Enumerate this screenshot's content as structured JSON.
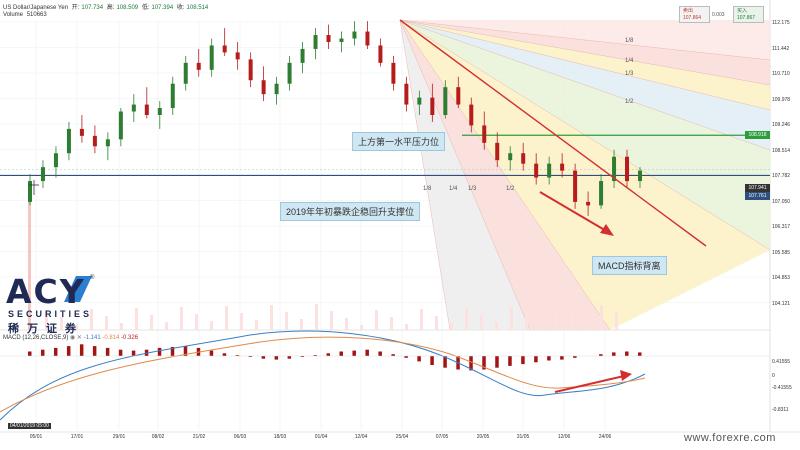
{
  "header": {
    "symbol": "US Dollar/Japanese Yen",
    "open_label": "开:",
    "open": "107.734",
    "high_label": "高:",
    "high": "108.509",
    "low_label": "低:",
    "low": "107.394",
    "close_label": "收:",
    "close": "108.514",
    "volume_label": "Volume",
    "volume": "510663"
  },
  "trade": {
    "sell_label": "卖出",
    "sell": "107.864",
    "spread": "0.003",
    "buy_label": "买入",
    "buy": "107.867"
  },
  "price_axis": {
    "ticks": [
      "112.175",
      "111.442",
      "110.710",
      "109.978",
      "109.246",
      "108.514",
      "107.782",
      "107.050",
      "106.317",
      "105.585",
      "104.853",
      "104.121"
    ],
    "tag_green": "108.918",
    "tag_current_top": "107.941",
    "tag_current_bottom": "107.761"
  },
  "date_axis": {
    "ticks": [
      "05/01",
      "17/01",
      "29/01",
      "08/02",
      "21/02",
      "06/03",
      "18/03",
      "01/04",
      "12/04",
      "25/04",
      "07/05",
      "20/05",
      "31/05",
      "12/06",
      "24/06"
    ],
    "cursor_date": "04/01/2019  05:00"
  },
  "annotations": {
    "resistance": "上方第一水平压力位",
    "support": "2019年年初暴跌企稳回升支撑位",
    "macd": "MACD指标背离"
  },
  "fib_labels": [
    "1/8",
    "1/4",
    "1/3",
    "1/2",
    "1/8",
    "1/4",
    "1/3",
    "1/2"
  ],
  "macd": {
    "title": "MACD (12,26,CLOSE,9)",
    "v1": "-1.141",
    "v2": "-0.814",
    "v3": "-0.326",
    "ticks": [
      "0.41555",
      "0",
      "-0.41555",
      "-0.8311"
    ]
  },
  "logo": {
    "main": "ACY",
    "sub": "SECURITIES",
    "cn": "稀万证券",
    "reg": "®"
  },
  "watermark": "www.forexre.com",
  "colors": {
    "up": "#2e7d32",
    "down": "#b71c1c",
    "trend": "#d32f2f",
    "resistance": "#2e9e3a",
    "support": "#5b8fbf",
    "macd_fast": "#3b7fc4",
    "macd_slow": "#e08a4a"
  },
  "chart_data": {
    "type": "candlestick",
    "title": "US Dollar/Japanese Yen",
    "x_range": [
      "05/01",
      "24/06"
    ],
    "y_range": [
      104.121,
      112.175
    ],
    "resistance_level": 108.918,
    "support_level": 107.761,
    "trend_line": {
      "from": [
        "25/04",
        112.175
      ],
      "to": [
        "24/06",
        106.317
      ]
    },
    "ohlc": [
      [
        107.0,
        107.8,
        106.9,
        107.6
      ],
      [
        107.6,
        108.2,
        107.4,
        108.0
      ],
      [
        108.0,
        108.6,
        107.7,
        108.4
      ],
      [
        108.4,
        109.3,
        108.2,
        109.1
      ],
      [
        109.1,
        109.5,
        108.7,
        108.9
      ],
      [
        108.9,
        109.2,
        108.4,
        108.6
      ],
      [
        108.6,
        109.0,
        108.2,
        108.8
      ],
      [
        108.8,
        109.7,
        108.6,
        109.6
      ],
      [
        109.6,
        110.1,
        109.3,
        109.8
      ],
      [
        109.8,
        110.3,
        109.4,
        109.5
      ],
      [
        109.5,
        109.9,
        109.1,
        109.7
      ],
      [
        109.7,
        110.6,
        109.5,
        110.4
      ],
      [
        110.4,
        111.2,
        110.2,
        111.0
      ],
      [
        111.0,
        111.4,
        110.6,
        110.8
      ],
      [
        110.8,
        111.7,
        110.6,
        111.5
      ],
      [
        111.5,
        112.0,
        111.2,
        111.3
      ],
      [
        111.3,
        111.6,
        110.8,
        111.1
      ],
      [
        111.1,
        111.3,
        110.3,
        110.5
      ],
      [
        110.5,
        110.9,
        109.9,
        110.1
      ],
      [
        110.1,
        110.6,
        109.8,
        110.4
      ],
      [
        110.4,
        111.2,
        110.2,
        111.0
      ],
      [
        111.0,
        111.6,
        110.7,
        111.4
      ],
      [
        111.4,
        112.0,
        111.1,
        111.8
      ],
      [
        111.8,
        112.1,
        111.4,
        111.6
      ],
      [
        111.6,
        111.9,
        111.3,
        111.7
      ],
      [
        111.7,
        112.2,
        111.5,
        111.9
      ],
      [
        111.9,
        112.2,
        111.4,
        111.5
      ],
      [
        111.5,
        111.7,
        110.9,
        111.0
      ],
      [
        111.0,
        111.2,
        110.2,
        110.4
      ],
      [
        110.4,
        110.6,
        109.6,
        109.8
      ],
      [
        109.8,
        110.2,
        109.5,
        110.0
      ],
      [
        110.0,
        110.4,
        109.3,
        109.5
      ],
      [
        109.5,
        110.5,
        109.4,
        110.3
      ],
      [
        110.3,
        110.6,
        109.7,
        109.8
      ],
      [
        109.8,
        110.0,
        109.0,
        109.2
      ],
      [
        109.2,
        109.6,
        108.5,
        108.7
      ],
      [
        108.7,
        109.0,
        108.0,
        108.2
      ],
      [
        108.2,
        108.6,
        107.9,
        108.4
      ],
      [
        108.4,
        108.7,
        107.9,
        108.1
      ],
      [
        108.1,
        108.4,
        107.5,
        107.7
      ],
      [
        107.7,
        108.3,
        107.5,
        108.1
      ],
      [
        108.1,
        108.4,
        107.7,
        107.9
      ],
      [
        107.9,
        108.1,
        106.8,
        107.0
      ],
      [
        107.0,
        107.3,
        106.6,
        106.9
      ],
      [
        106.9,
        107.8,
        106.8,
        107.6
      ],
      [
        107.6,
        108.5,
        107.4,
        108.3
      ],
      [
        108.3,
        108.5,
        107.4,
        107.6
      ],
      [
        107.6,
        108.0,
        107.4,
        107.9
      ]
    ],
    "macd_hist": [
      0.1,
      0.14,
      0.18,
      0.22,
      0.26,
      0.22,
      0.18,
      0.14,
      0.12,
      0.14,
      0.18,
      0.2,
      0.22,
      0.18,
      0.12,
      0.06,
      0.02,
      -0.02,
      -0.06,
      -0.08,
      -0.06,
      -0.02,
      0.02,
      0.06,
      0.1,
      0.12,
      0.14,
      0.1,
      0.04,
      -0.04,
      -0.12,
      -0.2,
      -0.26,
      -0.3,
      -0.32,
      -0.3,
      -0.26,
      -0.22,
      -0.18,
      -0.14,
      -0.1,
      -0.08,
      -0.04,
      0.0,
      0.04,
      0.08,
      0.1,
      0.08
    ]
  }
}
